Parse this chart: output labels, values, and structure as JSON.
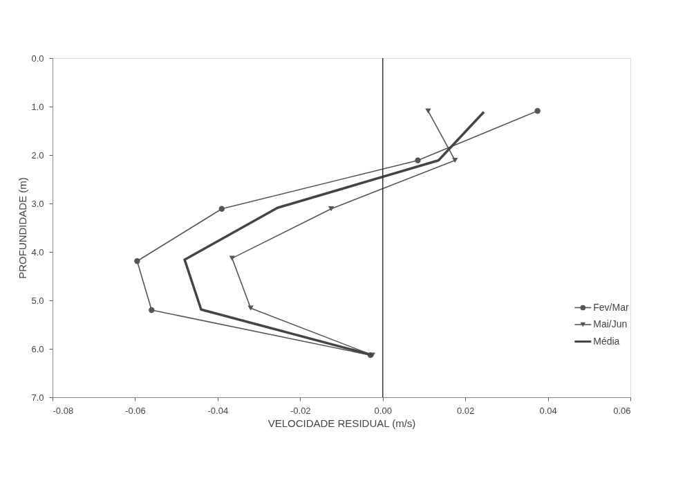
{
  "chart_data": {
    "type": "line",
    "xlabel": "VELOCIDADE RESIDUAL (m/s)",
    "ylabel": "PROFUNDIDADE (m)",
    "xlim": [
      -0.08,
      0.06
    ],
    "xticks": [
      {
        "value": -0.08,
        "label": "-0.08"
      },
      {
        "value": -0.06,
        "label": "-0.06"
      },
      {
        "value": -0.04,
        "label": "-0.04"
      },
      {
        "value": -0.02,
        "label": "-0.02"
      },
      {
        "value": 0,
        "label": "0.00"
      },
      {
        "value": 0.02,
        "label": "0.02"
      },
      {
        "value": 0.04,
        "label": "0.04"
      },
      {
        "value": 0.06,
        "label": "0.06"
      }
    ],
    "ylim": [
      7,
      0
    ],
    "yticks": [
      {
        "value": 0,
        "label": "0.0"
      },
      {
        "value": 1,
        "label": "1.0"
      },
      {
        "value": 2,
        "label": "2.0"
      },
      {
        "value": 3,
        "label": "3.0"
      },
      {
        "value": 4,
        "label": "4.0"
      },
      {
        "value": 5,
        "label": "5.0"
      },
      {
        "value": 6,
        "label": "6.0"
      },
      {
        "value": 7,
        "label": "7.0"
      }
    ],
    "grid": false,
    "legend": "bottom right",
    "ref_lines": [
      {
        "axis": "x",
        "value": 0,
        "color": "#333333"
      }
    ],
    "series": [
      {
        "name": "Fev/Mar",
        "color": "#555555",
        "marker": "circle",
        "x": [
          0.0375,
          0.0085,
          -0.039,
          -0.0595,
          -0.056,
          -0.003
        ],
        "values": [
          1.09,
          2.11,
          3.11,
          4.19,
          5.2,
          6.13
        ]
      },
      {
        "name": "Mai/Jun",
        "color": "#555555",
        "marker": "triangle",
        "x": [
          0.011,
          0.0175,
          -0.0125,
          -0.0365,
          -0.032,
          -0.0025
        ],
        "values": [
          1.09,
          2.11,
          3.11,
          4.13,
          5.16,
          6.13
        ]
      },
      {
        "name": "Média",
        "color": "#444444",
        "marker": "none",
        "x": [
          0.0245,
          0.0135,
          -0.0255,
          -0.048,
          -0.044,
          -0.0025
        ],
        "values": [
          1.11,
          2.11,
          3.09,
          4.16,
          5.19,
          6.13
        ]
      }
    ]
  }
}
